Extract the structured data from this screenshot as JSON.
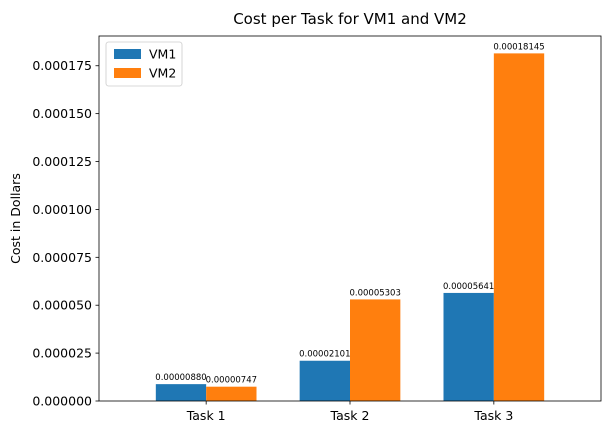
{
  "chart_data": {
    "type": "bar",
    "title": "Cost per Task for VM1 and VM2",
    "xlabel": "",
    "ylabel": "Cost in Dollars",
    "categories": [
      "Task 1",
      "Task 2",
      "Task 3"
    ],
    "series": [
      {
        "name": "VM1",
        "color": "#1f77b4",
        "values": [
          8.8e-06,
          2.101e-05,
          5.641e-05
        ],
        "labels": [
          "0.00000880",
          "0.00002101",
          "0.00005641"
        ]
      },
      {
        "name": "VM2",
        "color": "#ff7f0e",
        "values": [
          7.47e-06,
          5.303e-05,
          0.00018145
        ],
        "labels": [
          "0.00000747",
          "0.00005303",
          "0.00018145"
        ]
      }
    ],
    "ylim": [
      0,
      0.000190525
    ],
    "yticks": [
      0,
      2.5e-05,
      5e-05,
      7.5e-05,
      0.0001,
      0.000125,
      0.00015,
      0.000175
    ],
    "ytick_labels": [
      "0.000000",
      "0.000025",
      "0.000050",
      "0.000075",
      "0.000100",
      "0.000125",
      "0.000150",
      "0.000175"
    ],
    "legend": {
      "position": "top-left",
      "entries": [
        "VM1",
        "VM2"
      ]
    },
    "grid": false
  }
}
